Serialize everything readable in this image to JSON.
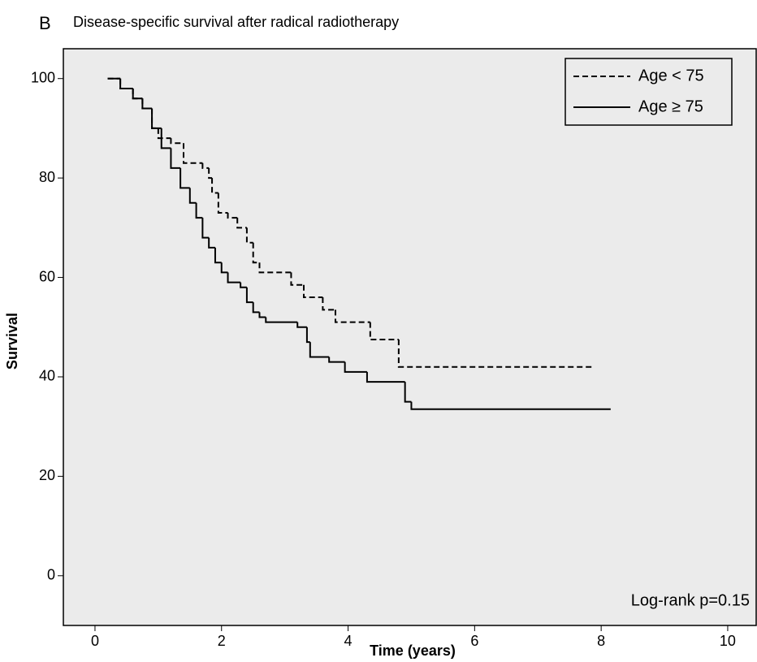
{
  "chart_data": {
    "type": "line",
    "step": "post",
    "panel_label": "B",
    "title": "Disease-specific survival after radical radiotherapy",
    "x_label": "Time (years)",
    "y_label": "Survival",
    "annotation": "Log-rank p=0.15",
    "xlim": [
      -0.5,
      10.45
    ],
    "ylim": [
      -10,
      106
    ],
    "xticks": [
      0,
      2,
      4,
      6,
      8,
      10
    ],
    "yticks": [
      0,
      20,
      40,
      60,
      80,
      100
    ],
    "legend": "upper right",
    "background": "#ebebeb",
    "series": [
      {
        "name": "Age < 75",
        "color": "#000000",
        "linestyle": "dashed",
        "x": [
          0.2,
          0.4,
          0.6,
          0.75,
          0.9,
          1.0,
          1.2,
          1.4,
          1.7,
          1.8,
          1.85,
          1.95,
          2.1,
          2.25,
          2.4,
          2.5,
          2.6,
          3.1,
          3.3,
          3.6,
          3.8,
          4.35,
          4.8,
          7.85
        ],
        "values": [
          100,
          98,
          96,
          94,
          90,
          88,
          87,
          83,
          82,
          80,
          77,
          73,
          72,
          70,
          67,
          63,
          61,
          58.5,
          56,
          53.5,
          51,
          47.5,
          42,
          42
        ]
      },
      {
        "name": "Age ≥ 75",
        "color": "#000000",
        "linestyle": "solid",
        "x": [
          0.2,
          0.4,
          0.6,
          0.75,
          0.9,
          1.05,
          1.2,
          1.35,
          1.5,
          1.6,
          1.7,
          1.8,
          1.9,
          2.0,
          2.1,
          2.3,
          2.4,
          2.5,
          2.6,
          2.7,
          3.2,
          3.35,
          3.4,
          3.7,
          3.95,
          4.3,
          4.9,
          5.0,
          8.15
        ],
        "values": [
          100,
          98,
          96,
          94,
          90,
          86,
          82,
          78,
          75,
          72,
          68,
          66,
          63,
          61,
          59,
          58,
          55,
          53,
          52,
          51,
          50,
          47,
          44,
          43,
          41,
          39,
          35,
          33.5,
          33.5
        ]
      }
    ]
  }
}
